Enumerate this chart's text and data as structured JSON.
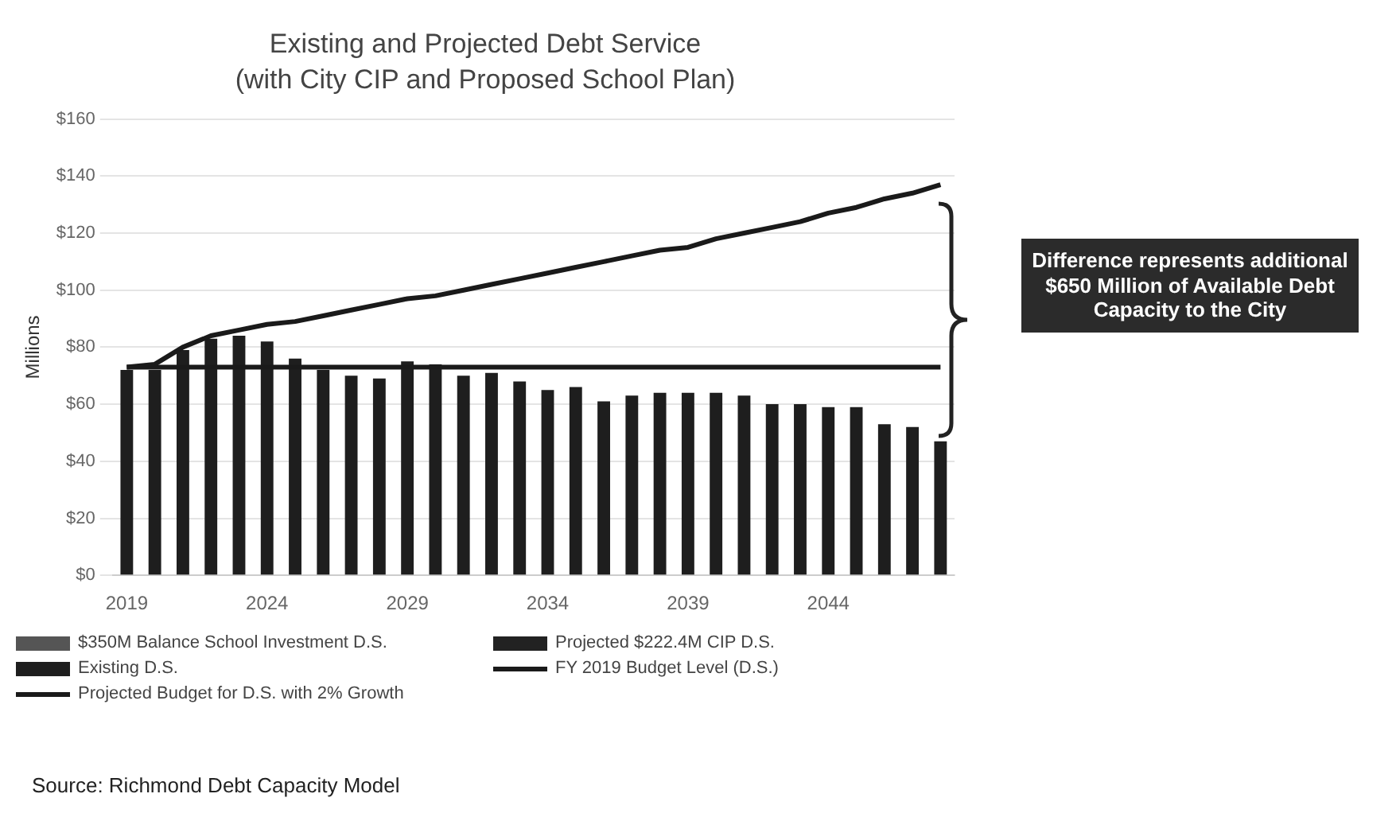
{
  "chart_data": {
    "type": "bar",
    "title": "Existing and Projected Debt Service",
    "subtitle": "(with City CIP and Proposed School Plan)",
    "ylabel": "Millions",
    "categories": [
      "2019",
      null,
      null,
      null,
      null,
      "2024",
      null,
      null,
      null,
      null,
      "2029",
      null,
      null,
      null,
      null,
      "2034",
      null,
      null,
      null,
      null,
      "2039",
      null,
      null,
      null,
      null,
      "2044",
      null,
      null,
      null,
      null
    ],
    "stacked": true,
    "grid": "y",
    "legend": "bottom",
    "ylim": [
      0,
      160
    ],
    "yticks": [
      {
        "value": 0,
        "label": "$0"
      },
      {
        "value": 20,
        "label": "$20"
      },
      {
        "value": 40,
        "label": "$40"
      },
      {
        "value": 60,
        "label": "$60"
      },
      {
        "value": 80,
        "label": "$80"
      },
      {
        "value": 100,
        "label": "$100"
      },
      {
        "value": 120,
        "label": "$120"
      },
      {
        "value": 140,
        "label": "$140"
      },
      {
        "value": 160,
        "label": "$160"
      }
    ],
    "series": [
      {
        "name": "$350M Balance School Investment D.S.",
        "color": "#555555",
        "values": [
          null,
          null,
          null,
          null,
          null,
          null,
          null,
          null,
          null,
          null,
          null,
          null,
          null,
          null,
          null,
          null,
          null,
          null,
          null,
          null,
          null,
          null,
          null,
          null,
          null,
          null,
          null,
          null,
          null,
          null
        ]
      },
      {
        "name": "Projected $222.4M CIP D.S.",
        "color": "#222222",
        "values": [
          null,
          null,
          null,
          null,
          null,
          null,
          null,
          null,
          null,
          null,
          null,
          null,
          null,
          null,
          null,
          null,
          null,
          null,
          null,
          null,
          null,
          null,
          null,
          null,
          null,
          null,
          null,
          null,
          null,
          null
        ]
      },
      {
        "name": "Existing D.S.",
        "color": "#1e1e1e",
        "values": [
          72,
          72,
          79,
          83,
          84,
          82,
          76,
          72,
          70,
          69,
          75,
          74,
          70,
          71,
          68,
          65,
          66,
          61,
          63,
          64,
          64,
          64,
          63,
          60,
          60,
          59,
          59,
          53,
          52,
          47
        ]
      },
      {
        "name": "FY 2019 Budget Level (D.S.)",
        "type": "line",
        "color": "#1a1a1a",
        "values": [
          73,
          73,
          73,
          73,
          73,
          73,
          73,
          73,
          73,
          73,
          73,
          73,
          73,
          73,
          73,
          73,
          73,
          73,
          73,
          73,
          73,
          73,
          73,
          73,
          73,
          73,
          73,
          73,
          73,
          73
        ]
      },
      {
        "name": "Projected Budget for D.S. with 2% Growth",
        "type": "line",
        "color": "#1a1a1a",
        "values": [
          73,
          74,
          80,
          84,
          86,
          88,
          89,
          91,
          93,
          95,
          97,
          98,
          100,
          102,
          104,
          106,
          108,
          110,
          112,
          114,
          115,
          118,
          120,
          122,
          124,
          127,
          129,
          132,
          134,
          137
        ]
      }
    ],
    "annotations": [
      "Difference represents additional $650 Million of Available Debt Capacity to the City",
      "Source: Richmond Debt Capacity Model"
    ]
  }
}
